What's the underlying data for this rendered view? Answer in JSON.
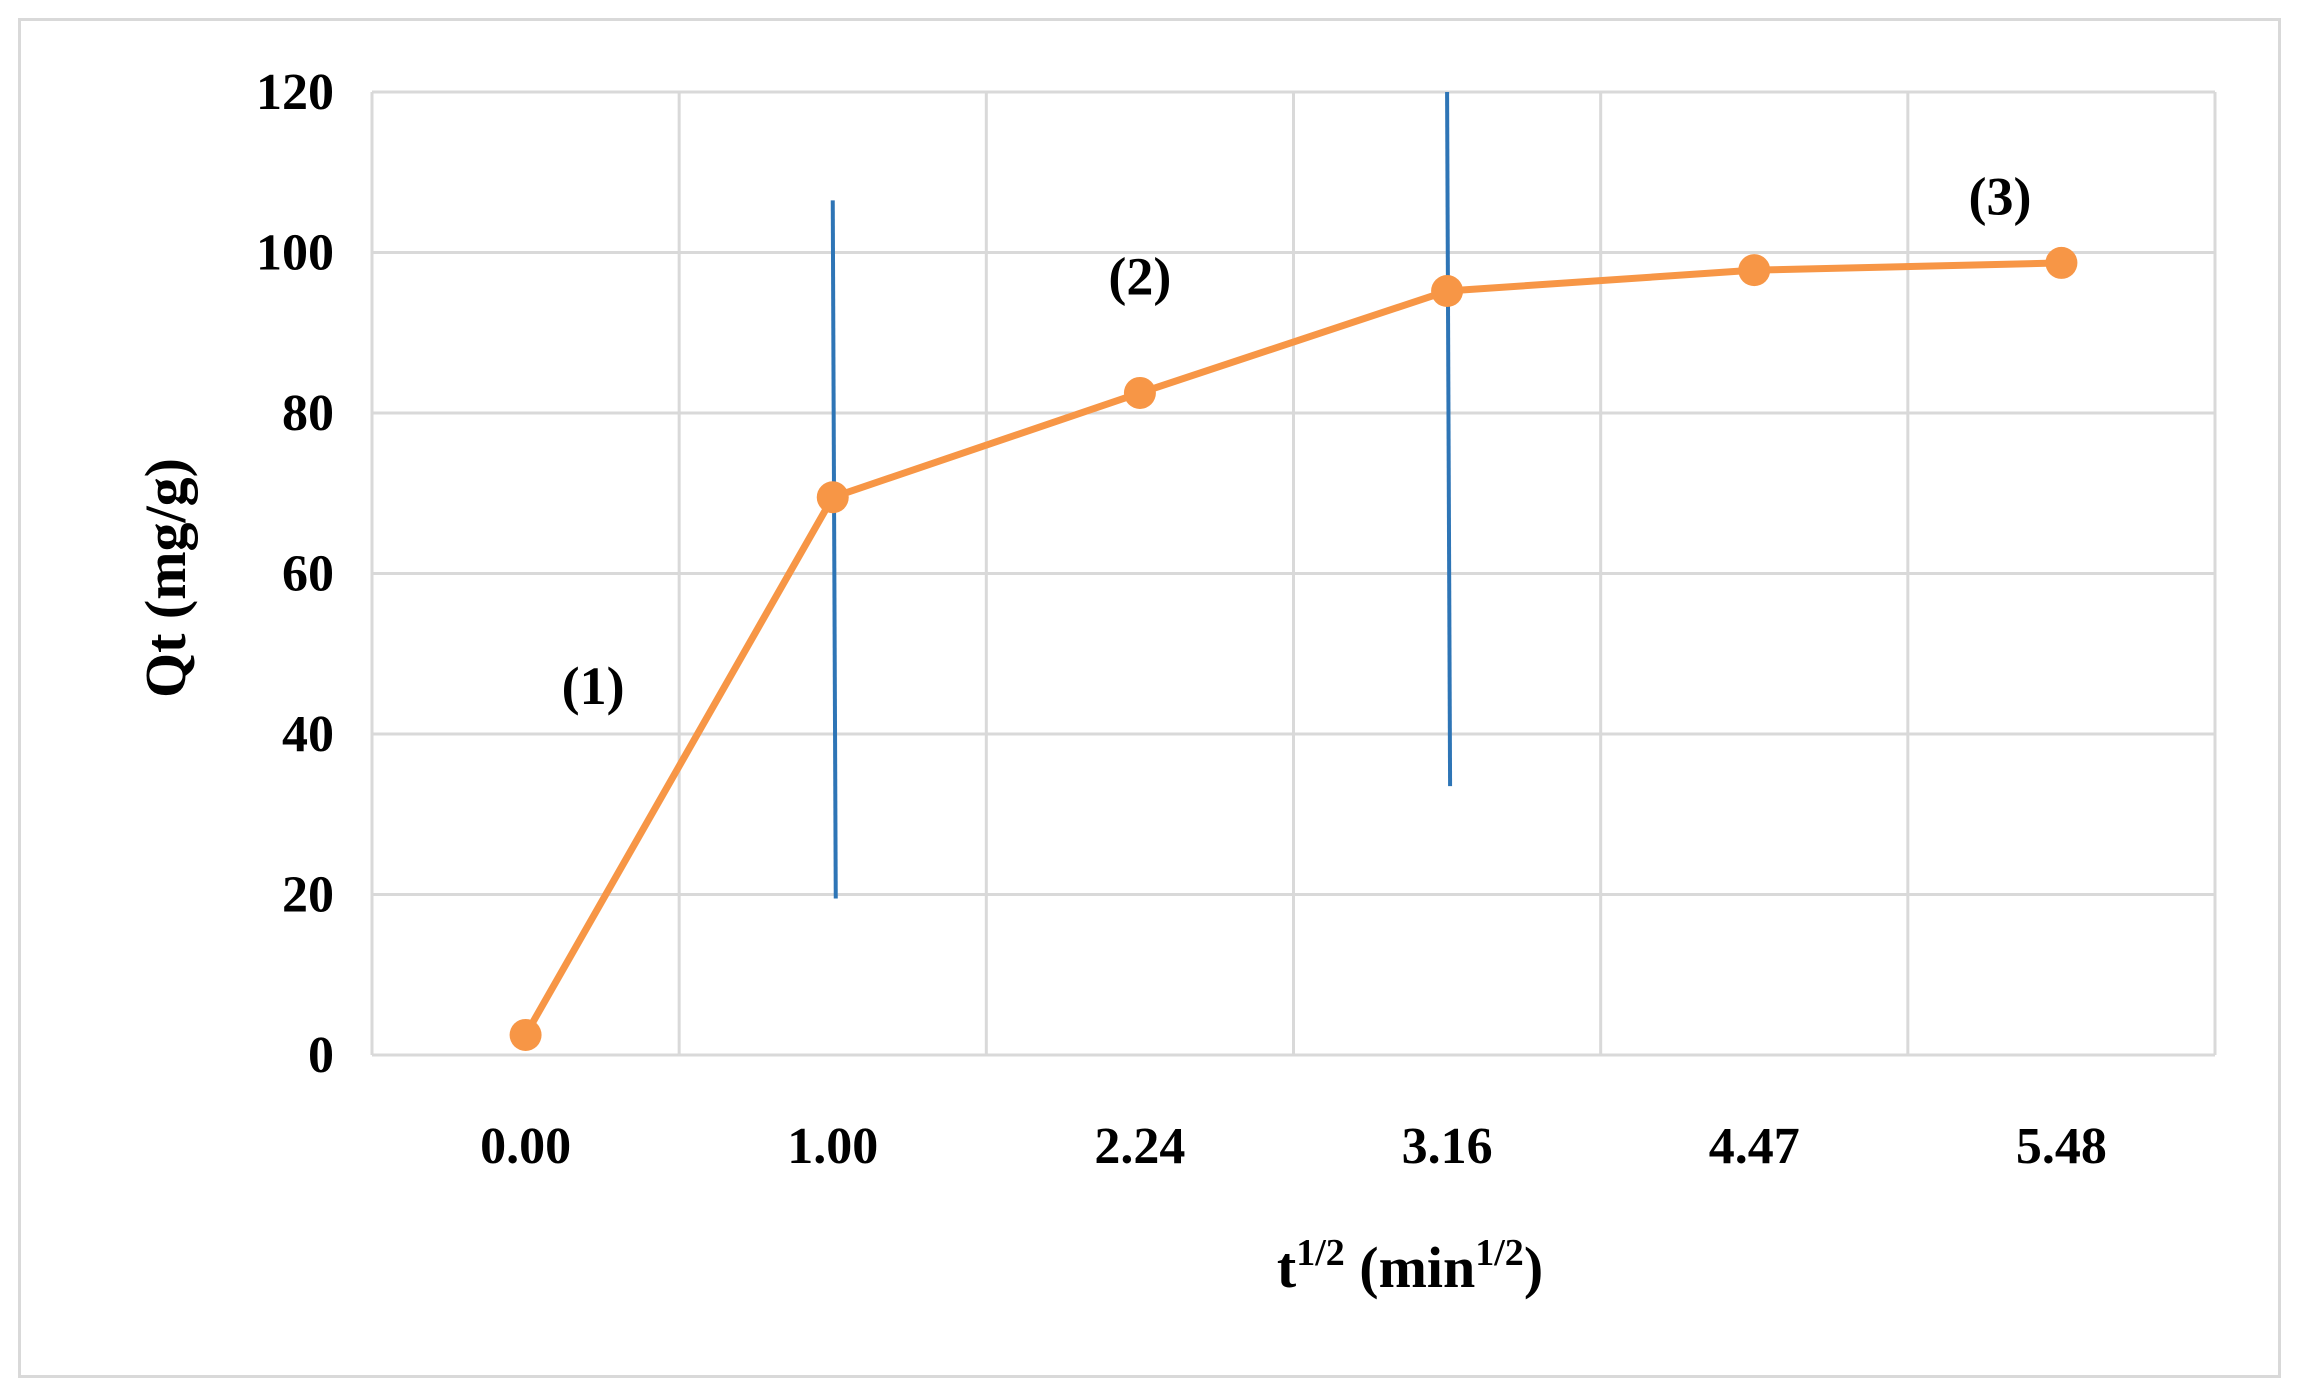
{
  "chart_data": {
    "type": "line",
    "categories": [
      "0.00",
      "1.00",
      "2.24",
      "3.16",
      "4.47",
      "5.48"
    ],
    "series": [
      {
        "values": [
          2.5,
          69.5,
          82.5,
          95.2,
          97.8,
          98.7
        ],
        "color": "#f79646"
      }
    ],
    "xlabel": {
      "base": "t",
      "base_sup": "1/2",
      "unit_open": " (min",
      "unit_sup": "1/2",
      "unit_close": ")"
    },
    "ylabel": "Qt (mg/g)",
    "ylim": [
      0,
      120
    ],
    "yticks": [
      0,
      20,
      40,
      60,
      80,
      100,
      120
    ],
    "grid": true,
    "legend": "none",
    "gridline_color": "#d9d9d9",
    "divider_color": "#2e75b6",
    "annotations": [
      {
        "text": "(1)",
        "x_index": 0.22,
        "y": 46
      },
      {
        "text": "(2)",
        "x_index": 2.0,
        "y": 97
      },
      {
        "text": "(3)",
        "x_index": 4.8,
        "y": 107
      }
    ],
    "phase_dividers": [
      {
        "x_index": 1.0,
        "y_from": 19.5,
        "y_to": 106.5
      },
      {
        "x_index": 3.0,
        "y_from": 33.5,
        "y_to": 120
      }
    ]
  }
}
